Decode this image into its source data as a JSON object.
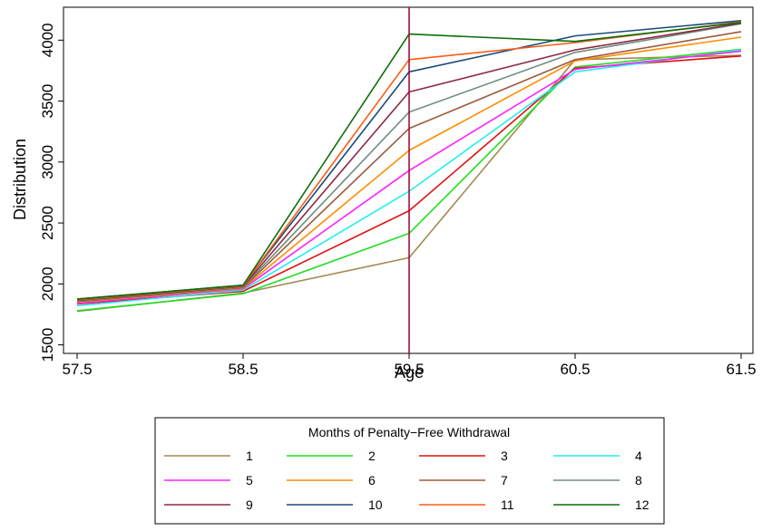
{
  "chart_data": {
    "type": "line",
    "xlabel": "Age",
    "ylabel": "Distribution",
    "x": [
      57.5,
      58.5,
      59.5,
      60.5,
      61.5
    ],
    "xticks": [
      "57.5",
      "58.5",
      "59.5",
      "60.5",
      "61.5"
    ],
    "yticks": [
      1500,
      2000,
      2500,
      3000,
      3500,
      4000
    ],
    "xlim": [
      57.5,
      61.5
    ],
    "ylim": [
      1430,
      4270
    ],
    "grid": false,
    "reference_line": {
      "x": 59.5,
      "color": "#a0103c"
    },
    "legend": {
      "title": "Months of Penalty−Free Withdrawal",
      "placement": "bottom",
      "columns": 4
    },
    "series": [
      {
        "name": "1",
        "color": "#a08a50",
        "values": [
          1775,
          1925,
          2215,
          3840,
          3875
        ]
      },
      {
        "name": "2",
        "color": "#22dd22",
        "values": [
          1780,
          1920,
          2415,
          3780,
          3925
        ]
      },
      {
        "name": "3",
        "color": "#dd1111",
        "values": [
          1835,
          1940,
          2600,
          3770,
          3870
        ]
      },
      {
        "name": "4",
        "color": "#22eeee",
        "values": [
          1820,
          1950,
          2760,
          3740,
          3920
        ]
      },
      {
        "name": "5",
        "color": "#ff22ff",
        "values": [
          1840,
          1960,
          2930,
          3760,
          3910
        ]
      },
      {
        "name": "6",
        "color": "#ff8c00",
        "values": [
          1850,
          1965,
          3095,
          3830,
          4025
        ]
      },
      {
        "name": "7",
        "color": "#9b5a3c",
        "values": [
          1855,
          1970,
          3275,
          3840,
          4070
        ]
      },
      {
        "name": "8",
        "color": "#6e8e80",
        "values": [
          1860,
          1975,
          3410,
          3900,
          4135
        ]
      },
      {
        "name": "9",
        "color": "#8c2840",
        "values": [
          1865,
          1980,
          3575,
          3920,
          4140
        ]
      },
      {
        "name": "10",
        "color": "#184a78",
        "values": [
          1875,
          1990,
          3740,
          4035,
          4160
        ]
      },
      {
        "name": "11",
        "color": "#ff5a14",
        "values": [
          1870,
          1985,
          3840,
          3980,
          4150
        ]
      },
      {
        "name": "12",
        "color": "#0a6e0a",
        "values": [
          1875,
          1990,
          4050,
          3990,
          4145
        ]
      }
    ]
  }
}
